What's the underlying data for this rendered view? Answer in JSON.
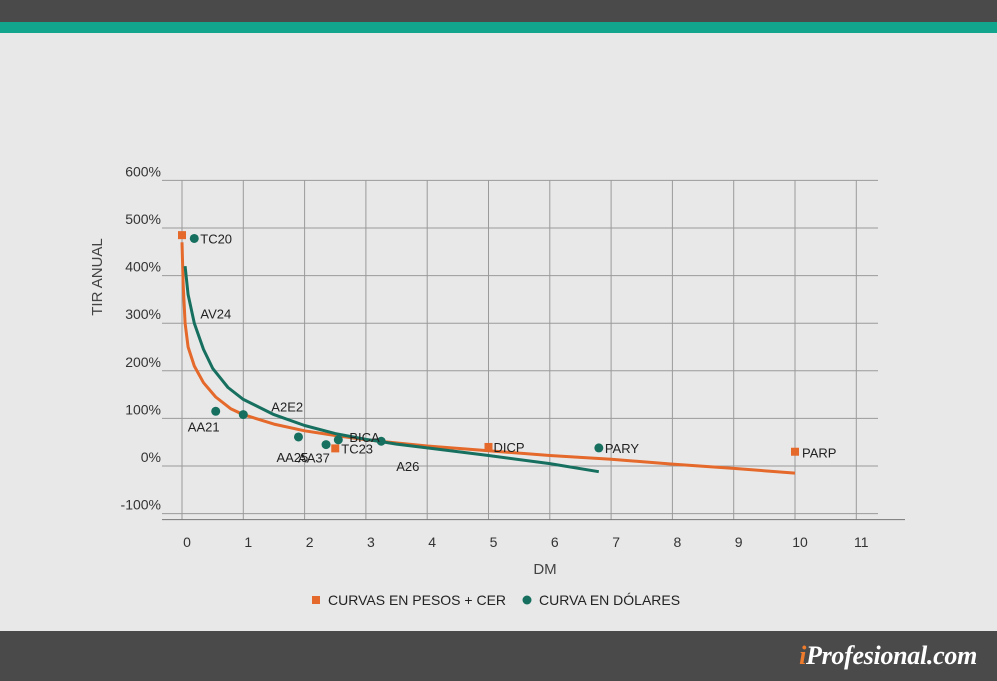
{
  "brand": {
    "prefix": "i",
    "name": "Profesional.com"
  },
  "colors": {
    "peso": "#e4692b",
    "dollar": "#17705f",
    "teal": "#12a58e",
    "dark": "#4a4a4a"
  },
  "chart_data": {
    "type": "scatter",
    "xlabel": "DM",
    "ylabel": "TIR ANUAL",
    "xlim": [
      0,
      11
    ],
    "ylim": [
      -100,
      600
    ],
    "x_ticks": [
      0,
      1,
      2,
      3,
      4,
      5,
      6,
      7,
      8,
      9,
      10,
      11
    ],
    "y_ticks": [
      -100,
      0,
      100,
      200,
      300,
      400,
      500,
      600
    ],
    "y_tick_labels": [
      "-100%",
      "0%",
      "100%",
      "200%",
      "300%",
      "400%",
      "500%",
      "600%"
    ],
    "grid": true,
    "legend_position": "bottom",
    "series": [
      {
        "name": "CURVAS EN PESOS + CER",
        "marker": "square",
        "color": "#e4692b",
        "points": [
          {
            "label": "",
            "x": 0.0,
            "y": 485
          },
          {
            "label": "TC23",
            "x": 2.5,
            "y": 37
          },
          {
            "label": "DICP",
            "x": 5.0,
            "y": 40
          },
          {
            "label": "PARP",
            "x": 10.0,
            "y": 30
          }
        ],
        "trend": [
          {
            "x": 0.0,
            "y": 470
          },
          {
            "x": 0.02,
            "y": 380
          },
          {
            "x": 0.05,
            "y": 300
          },
          {
            "x": 0.1,
            "y": 250
          },
          {
            "x": 0.2,
            "y": 210
          },
          {
            "x": 0.35,
            "y": 175
          },
          {
            "x": 0.55,
            "y": 145
          },
          {
            "x": 0.8,
            "y": 120
          },
          {
            "x": 1.0,
            "y": 108
          },
          {
            "x": 1.5,
            "y": 88
          },
          {
            "x": 2.0,
            "y": 74
          },
          {
            "x": 2.5,
            "y": 64
          },
          {
            "x": 3.0,
            "y": 55
          },
          {
            "x": 4.0,
            "y": 42
          },
          {
            "x": 5.0,
            "y": 32
          },
          {
            "x": 6.0,
            "y": 22
          },
          {
            "x": 7.0,
            "y": 14
          },
          {
            "x": 8.0,
            "y": 4
          },
          {
            "x": 9.0,
            "y": -5
          },
          {
            "x": 10.0,
            "y": -15
          }
        ]
      },
      {
        "name": "CURVA EN DÓLARES",
        "marker": "circle",
        "color": "#17705f",
        "points": [
          {
            "label": "TC20",
            "x": 0.2,
            "y": 478
          },
          {
            "label": "AA21",
            "x": 0.55,
            "y": 115
          },
          {
            "label": "A2E2",
            "x": 1.0,
            "y": 108
          },
          {
            "label": "AA25",
            "x": 1.9,
            "y": 61
          },
          {
            "label": "AA37",
            "x": 2.35,
            "y": 45
          },
          {
            "label": "BICA",
            "x": 2.55,
            "y": 55
          },
          {
            "label": "A26",
            "x": 3.25,
            "y": 52
          },
          {
            "label": "PARY",
            "x": 6.8,
            "y": 38
          }
        ],
        "extra_labels": [
          {
            "label": "AV24",
            "x": 0.3,
            "y": 310
          }
        ],
        "trend": [
          {
            "x": 0.05,
            "y": 420
          },
          {
            "x": 0.1,
            "y": 360
          },
          {
            "x": 0.2,
            "y": 300
          },
          {
            "x": 0.35,
            "y": 245
          },
          {
            "x": 0.5,
            "y": 205
          },
          {
            "x": 0.75,
            "y": 165
          },
          {
            "x": 1.0,
            "y": 140
          },
          {
            "x": 1.5,
            "y": 108
          },
          {
            "x": 2.0,
            "y": 85
          },
          {
            "x": 2.5,
            "y": 68
          },
          {
            "x": 3.0,
            "y": 56
          },
          {
            "x": 3.5,
            "y": 46
          },
          {
            "x": 4.0,
            "y": 38
          },
          {
            "x": 5.0,
            "y": 22
          },
          {
            "x": 6.0,
            "y": 5
          },
          {
            "x": 6.8,
            "y": -12
          }
        ]
      }
    ]
  }
}
